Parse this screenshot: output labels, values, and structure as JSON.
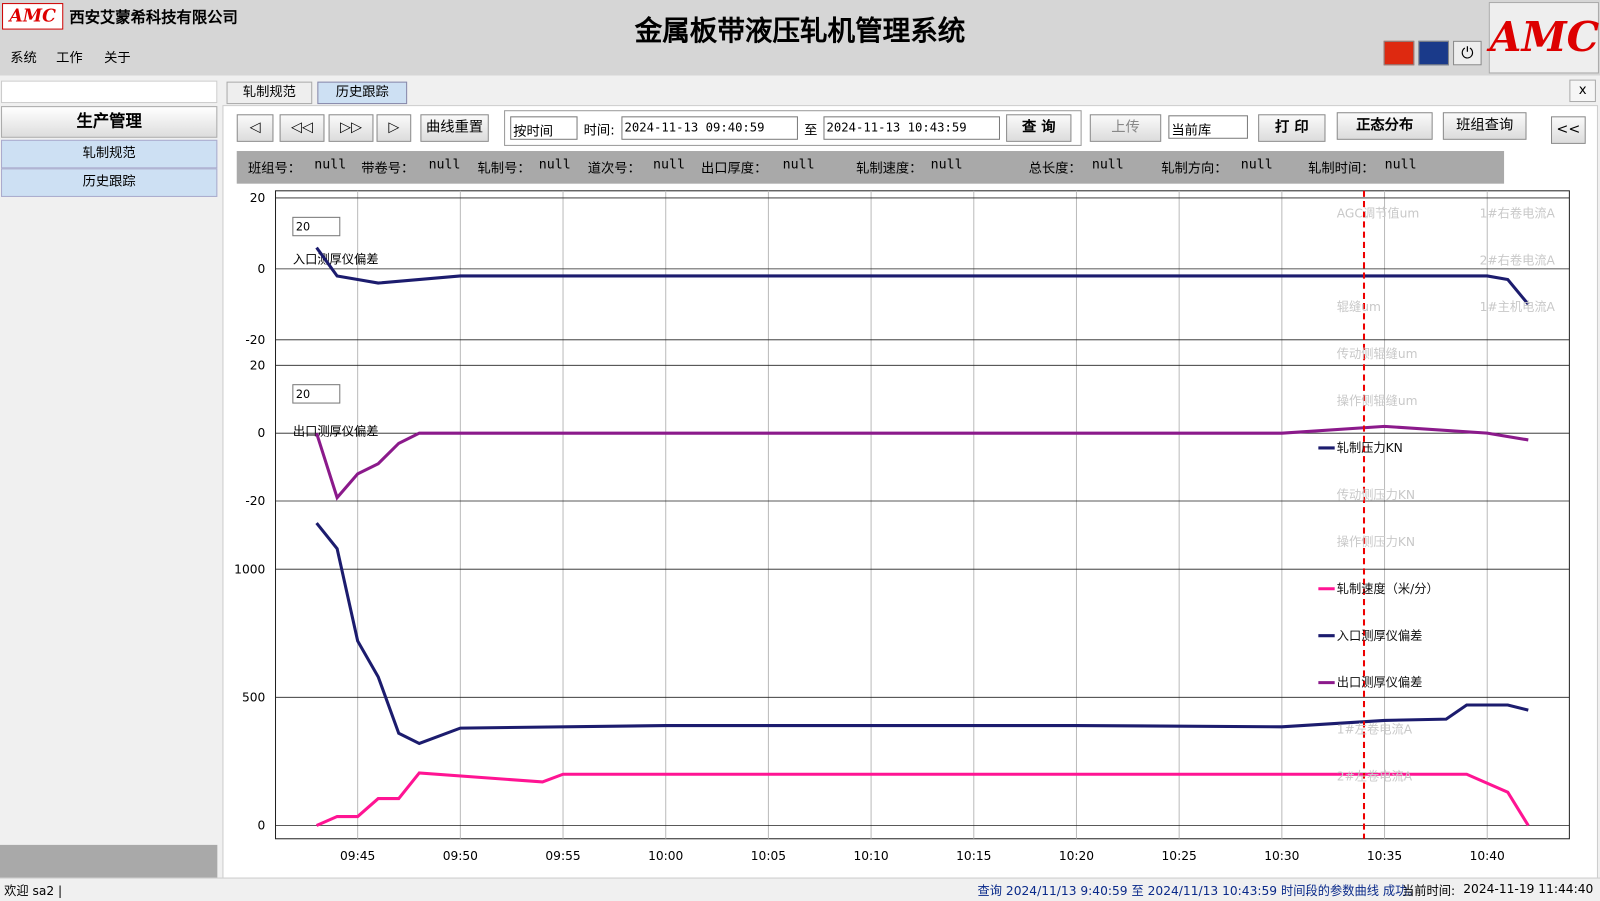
{
  "header": {
    "logo": "AMC",
    "company": "西安艾蒙希科技有限公司",
    "title": "金属板带液压轧机管理系统"
  },
  "menu": [
    "系统",
    "工作",
    "关于"
  ],
  "sidebar": {
    "section": "生产管理",
    "items": [
      "轧制规范",
      "历史跟踪"
    ]
  },
  "tabs": {
    "items": [
      "轧制规范",
      "历史跟踪"
    ],
    "close": "x"
  },
  "toolbar": {
    "nav": [
      "◁",
      "◁◁",
      "▷▷",
      "▷"
    ],
    "reset": "曲线重置",
    "mode": "按时间",
    "time_label": "时间:",
    "start": "2024-11-13 09:40:59",
    "to": "至",
    "end": "2024-11-13 10:43:59",
    "query": "查 询",
    "upload": "上传",
    "db": "当前库",
    "print": "打 印",
    "normal": "正态分布",
    "team": "班组查询",
    "collapse": "<<"
  },
  "info": [
    {
      "label": "班组号：",
      "value": "null"
    },
    {
      "label": "带卷号：",
      "value": "null"
    },
    {
      "label": "轧制号：",
      "value": "null"
    },
    {
      "label": "道次号：",
      "value": "null"
    },
    {
      "label": "出口厚度：",
      "value": "null"
    },
    {
      "label": "轧制速度：",
      "value": "null"
    },
    {
      "label": "总长度：",
      "value": "null"
    },
    {
      "label": "轧制方向：",
      "value": "null"
    },
    {
      "label": "轧制时间：",
      "value": "null"
    }
  ],
  "chart_data": [
    {
      "type": "line",
      "spin_value": 20,
      "xlim": [
        "09:41",
        "10:44"
      ],
      "ylim": [
        -20,
        20
      ],
      "yticks": [
        -20,
        0,
        20
      ],
      "series": [
        {
          "name": "入口测厚仪偏差",
          "color": "#1c1c6e",
          "x": [
            "09:43",
            "09:44",
            "09:45",
            "09:46",
            "09:50",
            "10:00",
            "10:10",
            "10:20",
            "10:30",
            "10:40",
            "10:41",
            "10:42"
          ],
          "values": [
            6,
            -2,
            -3,
            -4,
            -2,
            -2,
            -2,
            -2,
            -2,
            -2,
            -3,
            -10
          ]
        }
      ]
    },
    {
      "type": "line",
      "spin_value": 20,
      "xlim": [
        "09:41",
        "10:44"
      ],
      "ylim": [
        -20,
        20
      ],
      "yticks": [
        -20,
        0,
        20
      ],
      "series": [
        {
          "name": "出口测厚仪偏差",
          "color": "#8b1a8b",
          "x": [
            "09:43",
            "09:44",
            "09:45",
            "09:46",
            "09:47",
            "09:48",
            "09:50",
            "10:00",
            "10:10",
            "10:20",
            "10:30",
            "10:35",
            "10:40",
            "10:42"
          ],
          "values": [
            0,
            -19,
            -12,
            -9,
            -3,
            0,
            0,
            0,
            0,
            0,
            0,
            2,
            0,
            -2
          ]
        }
      ]
    },
    {
      "type": "line",
      "xlim": [
        "09:41",
        "10:44"
      ],
      "ylim": [
        0,
        1250
      ],
      "yticks": [
        0,
        500,
        1000
      ],
      "xticks": [
        "09:45",
        "09:50",
        "09:55",
        "10:00",
        "10:05",
        "10:10",
        "10:15",
        "10:20",
        "10:25",
        "10:30",
        "10:35",
        "10:40"
      ],
      "series": [
        {
          "name": "轧制压力KN",
          "color": "#1c1c6e",
          "x": [
            "09:43",
            "09:44",
            "09:45",
            "09:46",
            "09:47",
            "09:48",
            "09:50",
            "10:00",
            "10:10",
            "10:20",
            "10:30",
            "10:35",
            "10:38",
            "10:39",
            "10:41",
            "10:42"
          ],
          "values": [
            1180,
            1080,
            720,
            580,
            360,
            320,
            380,
            390,
            390,
            390,
            385,
            410,
            415,
            470,
            470,
            450
          ]
        },
        {
          "name": "轧制速度（米/分）",
          "color": "#ff1493",
          "x": [
            "09:43",
            "09:44",
            "09:45",
            "09:46",
            "09:47",
            "09:48",
            "09:54",
            "09:55",
            "10:38",
            "10:39",
            "10:41",
            "10:42"
          ],
          "values": [
            0,
            35,
            35,
            105,
            105,
            205,
            170,
            200,
            200,
            200,
            130,
            0
          ]
        }
      ]
    }
  ],
  "cursor_time": "10:34",
  "chart_legend": [
    {
      "name": "AGC调节值um",
      "color": "#c8c8c8",
      "active": false
    },
    {
      "name": "1#右卷电流A",
      "color": "#c8c8c8",
      "active": false
    },
    {
      "name": "2#右卷电流A",
      "color": "#c8c8c8",
      "active": false
    },
    {
      "name": "辊缝um",
      "color": "#c8c8c8",
      "active": false
    },
    {
      "name": "1#主机电流A",
      "color": "#c8c8c8",
      "active": false
    },
    {
      "name": "传动侧辊缝um",
      "color": "#c8c8c8",
      "active": false
    },
    {
      "name": "操作侧辊缝um",
      "color": "#c8c8c8",
      "active": false
    },
    {
      "name": "轧制压力KN",
      "color": "#1c1c6e",
      "active": true
    },
    {
      "name": "传动侧压力KN",
      "color": "#c8c8c8",
      "active": false
    },
    {
      "name": "操作侧压力KN",
      "color": "#c8c8c8",
      "active": false
    },
    {
      "name": "轧制速度（米/分）",
      "color": "#ff1493",
      "active": true
    },
    {
      "name": "入口测厚仪偏差",
      "color": "#1c1c6e",
      "active": true
    },
    {
      "name": "出口测厚仪偏差",
      "color": "#8b1a8b",
      "active": true
    },
    {
      "name": "1#左卷电流A",
      "color": "#c8c8c8",
      "active": false
    },
    {
      "name": "2#左卷电流A",
      "color": "#c8c8c8",
      "active": false
    }
  ],
  "status": {
    "user": "欢迎 sa2 |",
    "message": "查询 2024/11/13 9:40:59 至 2024/11/13 10:43:59 时间段的参数曲线 成功。",
    "now_label": "当前时间:",
    "now": "2024-11-19 11:44:40"
  }
}
